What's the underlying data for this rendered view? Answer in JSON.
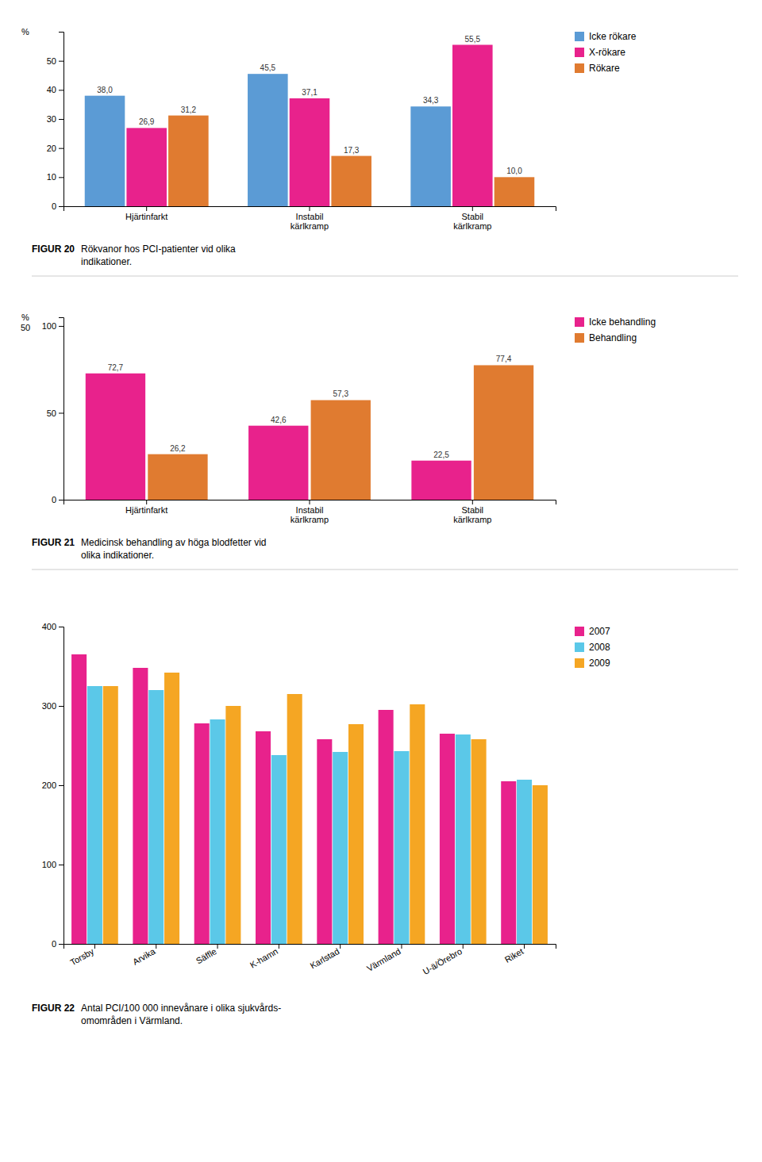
{
  "chart_data": [
    {
      "type": "bar",
      "title": "FIGUR 20",
      "subtitle": "Rökvanor hos PCI-patienter vid olika\nindikationer.",
      "y_label": "%",
      "categories": [
        "Hjärtinfarkt",
        "Instabil\nkärlkramp",
        "Stabil\nkärlkramp"
      ],
      "series": [
        {
          "name": "Icke rökare",
          "color": "#5B9BD5",
          "values": [
            38.0,
            45.5,
            34.3
          ],
          "value_labels": [
            "38,0",
            "45,5",
            "34,3"
          ]
        },
        {
          "name": "X-rökare",
          "color": "#E8228C",
          "values": [
            26.9,
            37.1,
            55.5
          ],
          "value_labels": [
            "26,9",
            "37,1",
            "55,5"
          ]
        },
        {
          "name": "Rökare",
          "color": "#E07B30",
          "values": [
            31.2,
            17.3,
            10.0
          ],
          "value_labels": [
            "31,2",
            "17,3",
            "10,0"
          ]
        }
      ],
      "ylim": [
        0,
        60
      ],
      "yticks": [
        0,
        10,
        20,
        30,
        40,
        50
      ],
      "data_labels": true,
      "grid": false,
      "legend": "upper right"
    },
    {
      "type": "bar",
      "title": "FIGUR 21",
      "subtitle": "Medicinsk behandling av höga blodfetter vid\nolika indikationer.",
      "y_label": "%\n50",
      "categories": [
        "Hjärtinfarkt",
        "Instabil\nkärlkramp",
        "Stabil\nkärlkramp"
      ],
      "series": [
        {
          "name": "Icke behandling",
          "color": "#E8228C",
          "values": [
            72.7,
            42.6,
            22.5
          ],
          "value_labels": [
            "72,7",
            "42,6",
            "22,5"
          ]
        },
        {
          "name": "Behandling",
          "color": "#E07B30",
          "values": [
            26.2,
            57.3,
            77.4
          ],
          "value_labels": [
            "26,2",
            "57,3",
            "77,4"
          ]
        }
      ],
      "ylim": [
        0,
        105
      ],
      "yticks": [
        0,
        50,
        100
      ],
      "data_labels": true,
      "grid": false,
      "legend": "upper right"
    },
    {
      "type": "bar",
      "title": "FIGUR 22",
      "subtitle": "Antal PCI/100 000 innevånare i olika sjukvårds-\nomområden i Värmland.",
      "categories": [
        "Torsby",
        "Arvika",
        "Säffle",
        "K-hamn",
        "Karlstad",
        "Värmland",
        "U-ä/Örebro",
        "Riket"
      ],
      "series": [
        {
          "name": "2007",
          "color": "#E8228C",
          "values": [
            365,
            348,
            278,
            268,
            258,
            295,
            265,
            205
          ]
        },
        {
          "name": "2008",
          "color": "#5BC8E8",
          "values": [
            325,
            320,
            283,
            238,
            242,
            243,
            264,
            207
          ]
        },
        {
          "name": "2009",
          "color": "#F5A623",
          "values": [
            325,
            342,
            300,
            315,
            277,
            302,
            258,
            200
          ]
        }
      ],
      "ylim": [
        0,
        400
      ],
      "yticks": [
        0,
        100,
        200,
        300,
        400
      ],
      "data_labels": false,
      "grid": false,
      "legend": "upper right"
    }
  ]
}
